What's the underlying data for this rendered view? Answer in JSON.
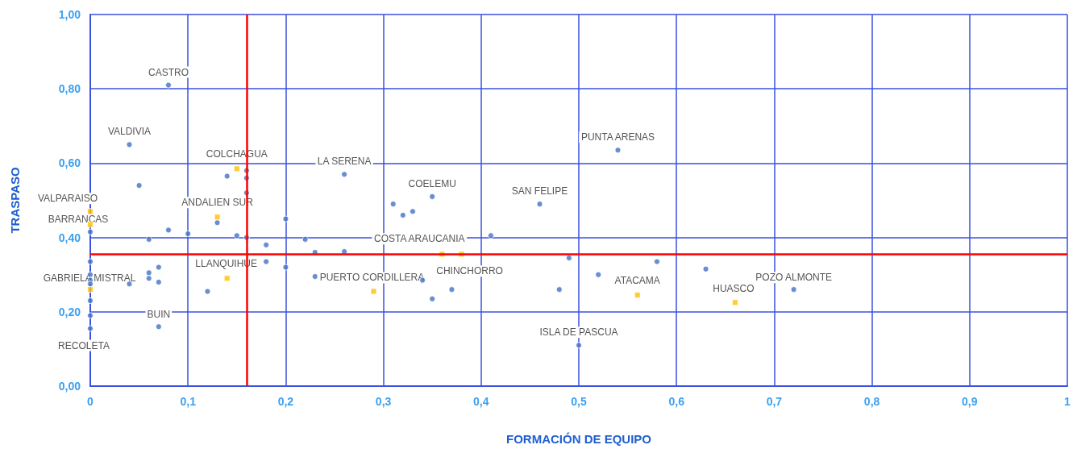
{
  "chart_data": {
    "type": "scatter",
    "xlabel": "FORMACIÓN DE EQUIPO",
    "ylabel": "TRASPASO",
    "xlim": [
      0,
      1
    ],
    "xticks": [
      0,
      {
        "value": 0.1,
        "label": "0,1"
      },
      {
        "value": 0.2,
        "label": "0,2"
      },
      {
        "value": 0.3,
        "label": "0,3"
      },
      {
        "value": 0.4,
        "label": "0,4"
      },
      {
        "value": 0.5,
        "label": "0,5"
      },
      {
        "value": 0.6,
        "label": "0,6"
      },
      {
        "value": 0.7,
        "label": "0,7"
      },
      {
        "value": 0.8,
        "label": "0,8"
      },
      {
        "value": 0.9,
        "label": "0,9"
      },
      1
    ],
    "ylim": [
      0,
      1
    ],
    "yticks": [
      {
        "value": 0,
        "label": "0,00"
      },
      {
        "value": 0.2,
        "label": "0,20"
      },
      {
        "value": 0.4,
        "label": "0,40"
      },
      {
        "value": 0.6,
        "label": "0,60"
      },
      {
        "value": 0.8,
        "label": "0,80"
      },
      {
        "value": 1,
        "label": "1,00"
      }
    ],
    "grid": true,
    "series": [
      {
        "color": "#4472c4",
        "marker": "circle",
        "x": [
          0.08,
          0.04,
          0.05,
          0.14,
          0.16,
          0.16,
          0.16,
          0.2,
          0.26,
          0.31,
          0.32,
          0.33,
          0.35,
          0.46,
          0.54,
          0.41,
          0,
          0.08,
          0.1,
          0.06,
          0.13,
          0.15,
          0.16,
          0.18,
          0.22,
          0.23,
          0.26,
          0.18,
          0.2,
          0.23,
          0,
          0.07,
          0.06,
          0.06,
          0.07,
          0.04,
          0,
          0,
          0,
          0,
          0,
          0,
          0.07,
          0.12,
          0.34,
          0.37,
          0.35,
          0.49,
          0.48,
          0.52,
          0.58,
          0.63,
          0.72,
          0.5
        ],
        "values": [
          0.81,
          0.65,
          0.54,
          0.565,
          0.58,
          0.56,
          0.52,
          0.45,
          0.57,
          0.49,
          0.46,
          0.47,
          0.51,
          0.49,
          0.635,
          0.405,
          0.415,
          0.42,
          0.41,
          0.395,
          0.44,
          0.405,
          0.4,
          0.38,
          0.395,
          0.36,
          0.362,
          0.335,
          0.32,
          0.295,
          0.335,
          0.32,
          0.305,
          0.29,
          0.28,
          0.275,
          0.3,
          0.285,
          0.275,
          0.23,
          0.19,
          0.155,
          0.16,
          0.255,
          0.285,
          0.26,
          0.235,
          0.345,
          0.26,
          0.3,
          0.335,
          0.315,
          0.26,
          0.11
        ]
      },
      {
        "color": "#ffc000",
        "marker": "square",
        "x": [
          0.15,
          0,
          0,
          0.13,
          0,
          0.14,
          0.29,
          0.36,
          0.38,
          0.56,
          0.66
        ],
        "values": [
          0.585,
          0.47,
          0.435,
          0.455,
          0.26,
          0.29,
          0.255,
          0.355,
          0.355,
          0.245,
          0.225
        ]
      }
    ],
    "ref_lines": [
      {
        "axis": "x",
        "value": 0.16,
        "color": "#ff0000"
      },
      {
        "axis": "y",
        "value": 0.355,
        "color": "#ff0000"
      }
    ],
    "annotations": [
      {
        "text": "CASTRO",
        "x": 0.08,
        "y": 0.81
      },
      {
        "text": "VALDIVIA",
        "x": 0.04,
        "y": 0.65
      },
      {
        "text": "COLCHAGUA",
        "x": 0.15,
        "y": 0.585
      },
      {
        "text": "LA SERENA",
        "x": 0.26,
        "y": 0.57
      },
      {
        "text": "COELEMU",
        "x": 0.35,
        "y": 0.51
      },
      {
        "text": "SAN FELIPE",
        "x": 0.46,
        "y": 0.49
      },
      {
        "text": "PUNTA ARENAS",
        "x": 0.54,
        "y": 0.635
      },
      {
        "text": "VALPARAISO",
        "x": 0,
        "y": 0.47
      },
      {
        "text": "BARRANCAS",
        "x": 0,
        "y": 0.435
      },
      {
        "text": "ANDALIEN SUR",
        "x": 0.13,
        "y": 0.455
      },
      {
        "text": "COSTA ARAUCANIA",
        "x": 0.36,
        "y": 0.355
      },
      {
        "text": "CHINCHORRO",
        "x": 0.38,
        "y": 0.355
      },
      {
        "text": "LLANQUIHUE",
        "x": 0.14,
        "y": 0.29
      },
      {
        "text": "GABRIELA MISTRAL",
        "x": 0,
        "y": 0.26
      },
      {
        "text": "PUERTO CORDILLERA",
        "x": 0.29,
        "y": 0.255
      },
      {
        "text": "BUIN",
        "x": 0.07,
        "y": 0.16
      },
      {
        "text": "RECOLETA",
        "x": 0,
        "y": 0.155
      },
      {
        "text": "ATACAMA",
        "x": 0.56,
        "y": 0.245
      },
      {
        "text": "HUASCO",
        "x": 0.66,
        "y": 0.225
      },
      {
        "text": "POZO ALMONTE",
        "x": 0.72,
        "y": 0.26
      },
      {
        "text": "ISLA DE PASCUA",
        "x": 0.5,
        "y": 0.11
      }
    ]
  }
}
